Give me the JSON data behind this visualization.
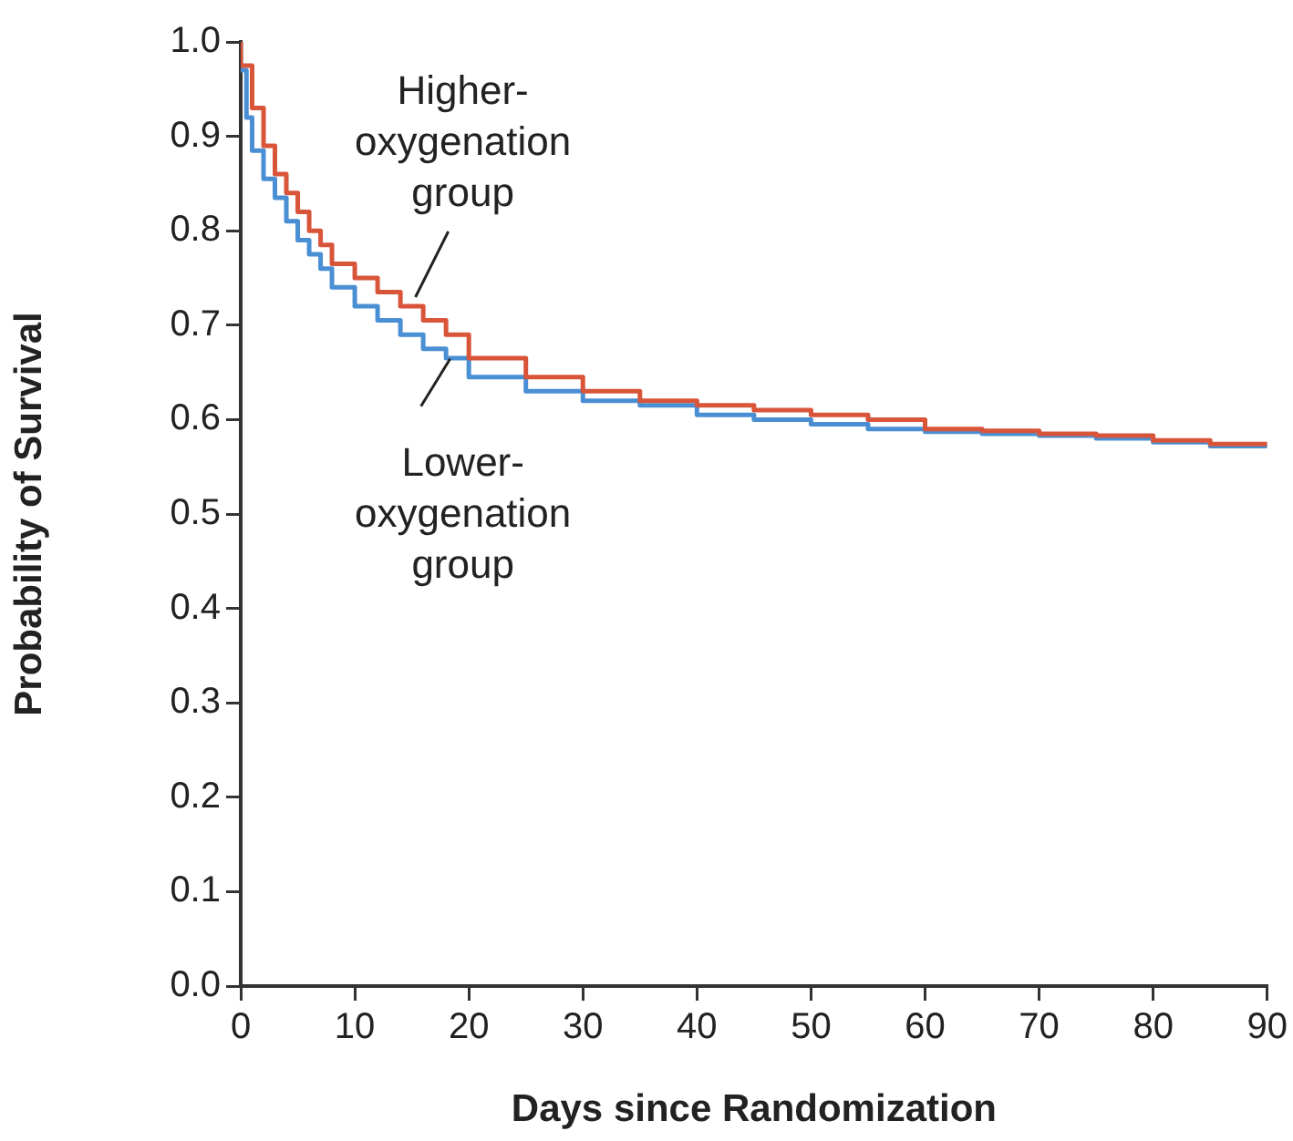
{
  "chart_data": {
    "type": "step",
    "xlabel": "Days since Randomization",
    "ylabel": "Probability of Survival",
    "xlim": [
      0,
      90
    ],
    "xticks": [
      0,
      10,
      20,
      30,
      40,
      50,
      60,
      70,
      80,
      90
    ],
    "ylim": [
      0,
      1
    ],
    "yticks": [
      {
        "value": 0,
        "label": "0.0"
      },
      0.1,
      0.2,
      0.3,
      0.4,
      0.5,
      0.6,
      0.7,
      0.8,
      0.9,
      {
        "value": 1,
        "label": "1.0"
      }
    ],
    "grid": false,
    "legend": false,
    "marker": "none",
    "line_style": "solid",
    "series": [
      {
        "color": "#d9553a",
        "x": [
          0,
          1,
          2,
          3,
          4,
          5,
          6,
          7,
          8,
          10,
          12,
          14,
          16,
          18,
          20,
          25,
          30,
          35,
          40,
          45,
          50,
          55,
          60,
          65,
          70,
          75,
          80,
          85,
          90
        ],
        "values": [
          1,
          0.975,
          0.93,
          0.89,
          0.86,
          0.84,
          0.82,
          0.8,
          0.785,
          0.765,
          0.75,
          0.735,
          0.72,
          0.705,
          0.69,
          0.665,
          0.645,
          0.63,
          0.62,
          0.615,
          0.61,
          0.605,
          0.6,
          0.59,
          0.588,
          0.585,
          0.583,
          0.578,
          0.574
        ]
      },
      {
        "color": "#4a8fd4",
        "x": [
          0,
          0.5,
          1,
          2,
          3,
          4,
          5,
          6,
          7,
          8,
          10,
          12,
          14,
          16,
          18,
          20,
          25,
          30,
          35,
          40,
          45,
          50,
          55,
          60,
          65,
          70,
          75,
          80,
          85,
          90
        ],
        "values": [
          1,
          0.97,
          0.92,
          0.885,
          0.855,
          0.835,
          0.81,
          0.79,
          0.775,
          0.76,
          0.74,
          0.72,
          0.705,
          0.69,
          0.675,
          0.665,
          0.645,
          0.63,
          0.62,
          0.615,
          0.605,
          0.6,
          0.595,
          0.59,
          0.587,
          0.585,
          0.583,
          0.58,
          0.576,
          0.572
        ]
      }
    ],
    "annotations": [
      {
        "text": "Higher-\noxygenation\ngroup",
        "x": 15,
        "y": 0.722
      },
      {
        "text": "Lower-\noxygenation\ngroup",
        "x": 19,
        "y": 0.672
      }
    ]
  }
}
